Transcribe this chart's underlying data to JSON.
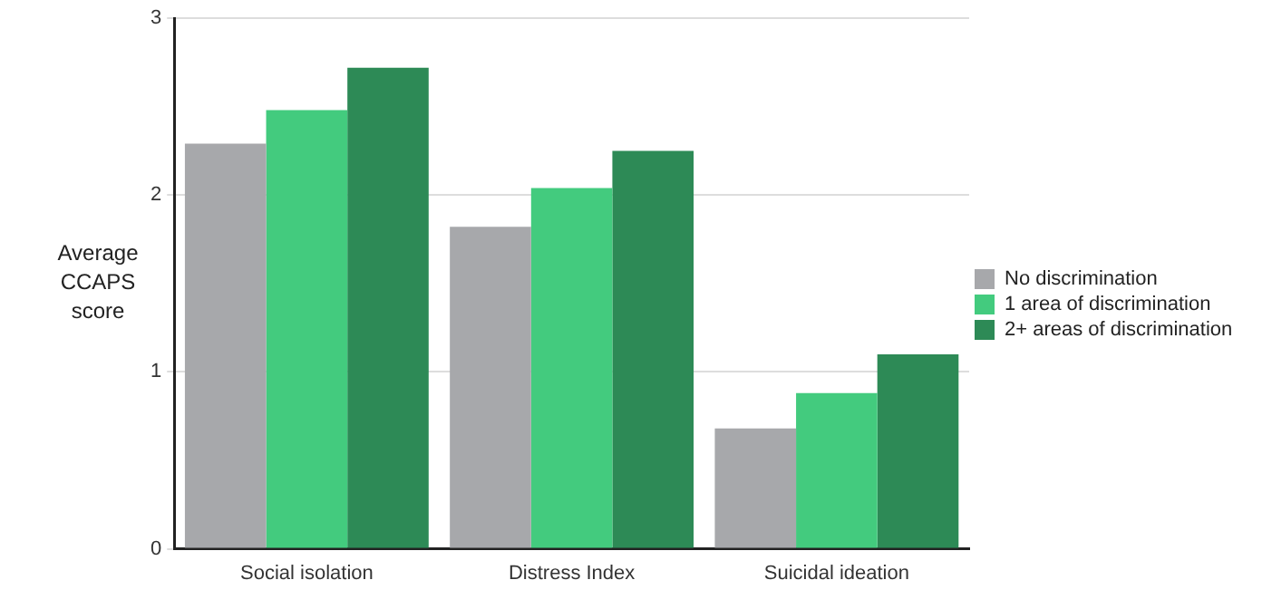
{
  "chart_data": {
    "type": "bar",
    "ylabel": "Average CCAPS score",
    "categories": [
      "Social isolation",
      "Distress Index",
      "Suicidal ideation"
    ],
    "series": [
      {
        "name": "No discrimination",
        "color": "#a7a8ab",
        "values": [
          2.29,
          1.82,
          0.68
        ]
      },
      {
        "name": "1 area of discrimination",
        "color": "#43cb7e",
        "values": [
          2.48,
          2.04,
          0.88
        ]
      },
      {
        "name": "2+ areas of discrimination",
        "color": "#2d8a56",
        "values": [
          2.72,
          2.25,
          1.1
        ]
      }
    ],
    "ylim": [
      0,
      3
    ],
    "yticks": [
      0,
      1,
      2,
      3
    ],
    "grid": "y",
    "legend": "right"
  }
}
